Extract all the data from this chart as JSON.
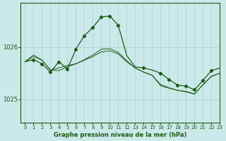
{
  "title": "Graphe pression niveau de la mer (hPa)",
  "bg_color": "#cce9e9",
  "grid_color": "#a8d0d0",
  "line_color": "#1a5c1a",
  "xlim": [
    -0.5,
    23
  ],
  "ylim": [
    1024.55,
    1026.85
  ],
  "yticks": [
    1025,
    1026
  ],
  "xticks": [
    0,
    1,
    2,
    3,
    4,
    5,
    6,
    7,
    8,
    9,
    10,
    11,
    12,
    13,
    14,
    15,
    16,
    17,
    18,
    19,
    20,
    21,
    22,
    23
  ],
  "s1_x": [
    0,
    1,
    2,
    3,
    4,
    5,
    6,
    7,
    8,
    9,
    10,
    11,
    12,
    13,
    14,
    15,
    16,
    17,
    18,
    19,
    20,
    21,
    22,
    23
  ],
  "s1_y": [
    1025.72,
    1025.85,
    1025.75,
    1025.56,
    1025.6,
    1025.65,
    1025.68,
    1025.75,
    1025.82,
    1025.91,
    1025.93,
    1025.87,
    1025.72,
    1025.6,
    1025.52,
    1025.46,
    1025.28,
    1025.22,
    1025.17,
    1025.15,
    1025.1,
    1025.28,
    1025.44,
    1025.5
  ],
  "s2_x": [
    0,
    1,
    2,
    3,
    4,
    5,
    6,
    7,
    8,
    9,
    10,
    11,
    12,
    13,
    14,
    15,
    16,
    17,
    18,
    19,
    20,
    21,
    22,
    23
  ],
  "s2_y": [
    1025.72,
    1025.82,
    1025.75,
    1025.56,
    1025.55,
    1025.62,
    1025.68,
    1025.76,
    1025.85,
    1025.96,
    1025.97,
    1025.9,
    1025.74,
    1025.6,
    1025.52,
    1025.46,
    1025.26,
    1025.21,
    1025.17,
    1025.14,
    1025.1,
    1025.28,
    1025.44,
    1025.5
  ],
  "s3_x": [
    0,
    1,
    2,
    3,
    4,
    5,
    6,
    7,
    8,
    9,
    10,
    11,
    12,
    13,
    14,
    15,
    16,
    17,
    18,
    19,
    20,
    21,
    22,
    23
  ],
  "s3_y": [
    1025.72,
    1025.76,
    1025.68,
    1025.52,
    1025.72,
    1025.58,
    1025.96,
    1026.22,
    1026.38,
    1026.58,
    1026.6,
    1026.42,
    1025.84,
    1025.62,
    1025.6,
    1025.56,
    1025.5,
    1025.38,
    1025.27,
    1025.25,
    1025.18,
    1025.36,
    1025.55,
    1025.6
  ],
  "s3_markers_x": [
    0,
    1,
    2,
    3,
    4,
    5,
    6,
    7,
    8,
    9,
    10,
    11,
    12,
    13,
    14,
    15,
    16,
    17,
    18,
    19,
    20,
    21,
    22,
    23
  ],
  "s3_markers_y": [
    1025.72,
    1025.76,
    1025.68,
    1025.52,
    1025.72,
    1025.58,
    1025.96,
    1026.22,
    1026.38,
    1026.58,
    1026.6,
    1026.42,
    1025.84,
    1025.62,
    1025.6,
    1025.56,
    1025.5,
    1025.38,
    1025.27,
    1025.25,
    1025.18,
    1025.36,
    1025.55,
    1025.6
  ]
}
